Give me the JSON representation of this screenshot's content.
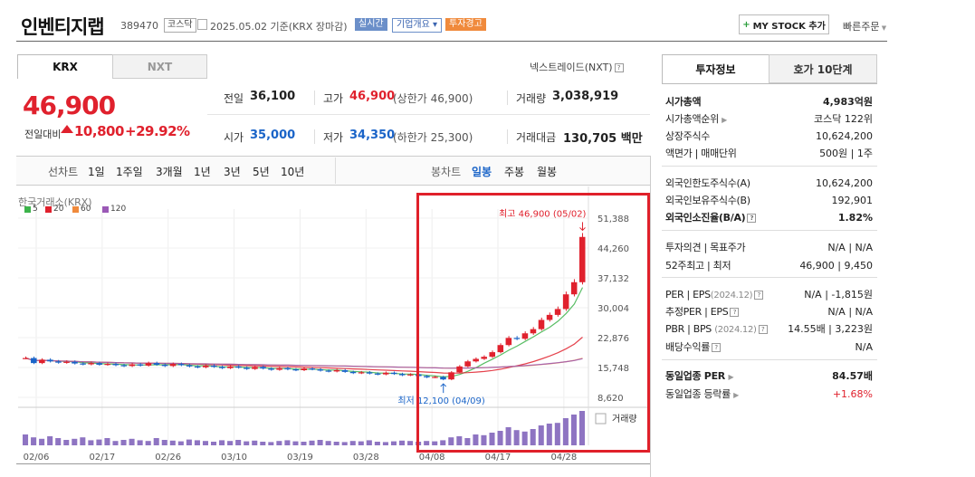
{
  "header": {
    "company": "인벤티지랩",
    "code": "389470",
    "market": "코스닥",
    "date_text": "2025.05.02  기준(KRX 장마감)",
    "pill_realtime": "실시간",
    "pill_company": "기업개요 ▾",
    "pill_warning": "투자경고",
    "mystock": "MY STOCK 추가",
    "quick_order": "빠른주문"
  },
  "exchange_tabs": {
    "krx": "KRX",
    "nxt": "NXT",
    "nxt_link": "넥스트레이드(NXT)"
  },
  "price": {
    "current": "46,900",
    "change_label": "전일대비",
    "change_value": "10,800",
    "change_pct": "+29.92%"
  },
  "quote": {
    "prev_close_label": "전일",
    "prev_close": "36,100",
    "high_label": "고가",
    "high": "46,900",
    "high_limit": "(상한가 46,900)",
    "volume_label": "거래량",
    "volume": "3,038,919",
    "open_label": "시가",
    "open": "35,000",
    "low_label": "저가",
    "low": "34,350",
    "low_limit": "(하한가 25,300)",
    "amount_label": "거래대금",
    "amount": "130,705",
    "amount_unit": "백만"
  },
  "periods": {
    "line_chart": "선차트",
    "line_items": [
      "1일",
      "1주일",
      "3개월",
      "1년",
      "3년",
      "5년",
      "10년"
    ],
    "candle_chart": "봉차트",
    "candle_items": [
      "일봉",
      "주봉",
      "월봉"
    ],
    "active": "일봉"
  },
  "chart_legend": {
    "source": "한국거래소(KRX)",
    "ma": [
      {
        "label": "5",
        "color": "#3cb34a"
      },
      {
        "label": "20",
        "color": "#e0212d"
      },
      {
        "label": "60",
        "color": "#f08a3c"
      },
      {
        "label": "120",
        "color": "#9b59b6"
      }
    ],
    "volume_label": "거래량"
  },
  "chart_data": {
    "type": "candlestick",
    "y_ticks": [
      "51,388",
      "44,260",
      "37,132",
      "30,004",
      "22,876",
      "15,748",
      "8,620"
    ],
    "ylim": [
      8620,
      51388
    ],
    "x_ticks": [
      "02/06",
      "02/17",
      "02/26",
      "03/10",
      "03/19",
      "03/28",
      "04/08",
      "04/17",
      "04/28"
    ],
    "annotation_high": "최고 46,900 (05/02)",
    "annotation_low": "최저 12,100 (04/09)",
    "series": [
      {
        "name": "close",
        "values": [
          18000,
          16800,
          17600,
          17200,
          16900,
          17100,
          16700,
          16500,
          16800,
          16400,
          16600,
          16300,
          16100,
          16500,
          16200,
          16800,
          16400,
          16100,
          16600,
          16300,
          16000,
          15800,
          16200,
          15900,
          15600,
          16000,
          15700,
          15400,
          15900,
          15500,
          15200,
          15600,
          15300,
          15100,
          15500,
          15300,
          15000,
          14800,
          15100,
          14700,
          14400,
          14600,
          14300,
          14100,
          14500,
          14200,
          13900,
          14100,
          13700,
          13400,
          13500,
          12900,
          14600,
          16000,
          17200,
          17800,
          18300,
          19400,
          21100,
          22800,
          22600,
          23900,
          24900,
          27100,
          28300,
          29700,
          33200,
          36100,
          46900
        ]
      },
      {
        "name": "volume",
        "values": [
          30,
          22,
          18,
          25,
          20,
          15,
          18,
          22,
          14,
          16,
          20,
          12,
          15,
          18,
          14,
          12,
          20,
          15,
          13,
          11,
          16,
          14,
          12,
          10,
          14,
          12,
          15,
          11,
          13,
          10,
          9,
          12,
          14,
          11,
          10,
          13,
          15,
          12,
          10,
          9,
          12,
          11,
          14,
          10,
          9,
          11,
          13,
          12,
          10,
          12,
          11,
          14,
          22,
          25,
          20,
          30,
          28,
          35,
          40,
          50,
          42,
          38,
          45,
          55,
          60,
          62,
          75,
          85,
          95
        ]
      }
    ]
  },
  "invest_tabs": {
    "info": "투자정보",
    "hoga": "호가 10단계"
  },
  "invest": {
    "market_cap_label": "시가총액",
    "market_cap": "4,983억원",
    "cap_rank_label": "시가총액순위",
    "cap_rank": "코스닥 122위",
    "shares_label": "상장주식수",
    "shares": "10,624,200",
    "par_label": "액면가 | 매매단위",
    "par": "500원 | 1주",
    "foreign_limit_label": "외국인한도주식수(A)",
    "foreign_limit": "10,624,200",
    "foreign_hold_label": "외국인보유주식수(B)",
    "foreign_hold": "192,901",
    "foreign_ratio_label": "외국인소진율(B/A)",
    "foreign_ratio": "1.82%",
    "opinion_label": "투자의견 | 목표주가",
    "opinion": "N/A | N/A",
    "w52_label": "52주최고 | 최저",
    "w52": "46,900 | 9,450",
    "per_label": "PER | EPS",
    "per_period": "(2024.12)",
    "per": "N/A | -1,815원",
    "est_per_label": "추정PER | EPS",
    "est_per": "N/A | N/A",
    "pbr_label": "PBR | BPS",
    "pbr_period": "(2024.12)",
    "pbr": "14.55배 | 3,223원",
    "div_label": "배당수익률",
    "div": "N/A",
    "ind_per_label": "동일업종 PER",
    "ind_per": "84.57배",
    "ind_rate_label": "동일업종 등락률",
    "ind_rate": "+1.68%"
  }
}
